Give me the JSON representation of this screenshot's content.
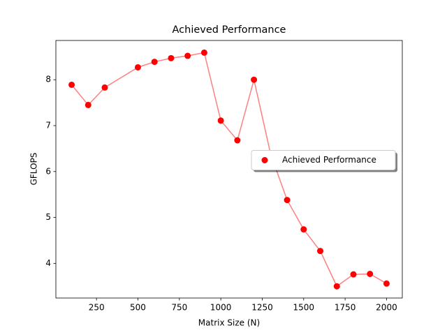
{
  "chart_data": {
    "type": "line",
    "title": "Achieved Performance",
    "x_label": "Matrix Size (N)",
    "y_label": "GFLOPS",
    "x": [
      100,
      200,
      300,
      500,
      600,
      700,
      800,
      900,
      1000,
      1100,
      1200,
      1300,
      1400,
      1500,
      1600,
      1700,
      1800,
      1900,
      2000
    ],
    "series": [
      {
        "name": "Achieved Performance",
        "color": "#ff0000",
        "line_alpha": 0.5,
        "markers": true,
        "values": [
          7.89,
          7.45,
          7.83,
          8.27,
          8.39,
          8.47,
          8.52,
          8.59,
          7.11,
          6.68,
          8.0,
          6.39,
          5.38,
          4.74,
          4.27,
          3.5,
          3.76,
          3.77,
          3.56
        ]
      }
    ],
    "xlim": [
      5,
      2095
    ],
    "xticks": [
      250,
      500,
      750,
      1000,
      1250,
      1500,
      1750,
      2000
    ],
    "ylim": [
      3.245,
      8.855
    ],
    "yticks": [
      4,
      5,
      6,
      7,
      8
    ],
    "legend": "center right",
    "grid": false
  }
}
